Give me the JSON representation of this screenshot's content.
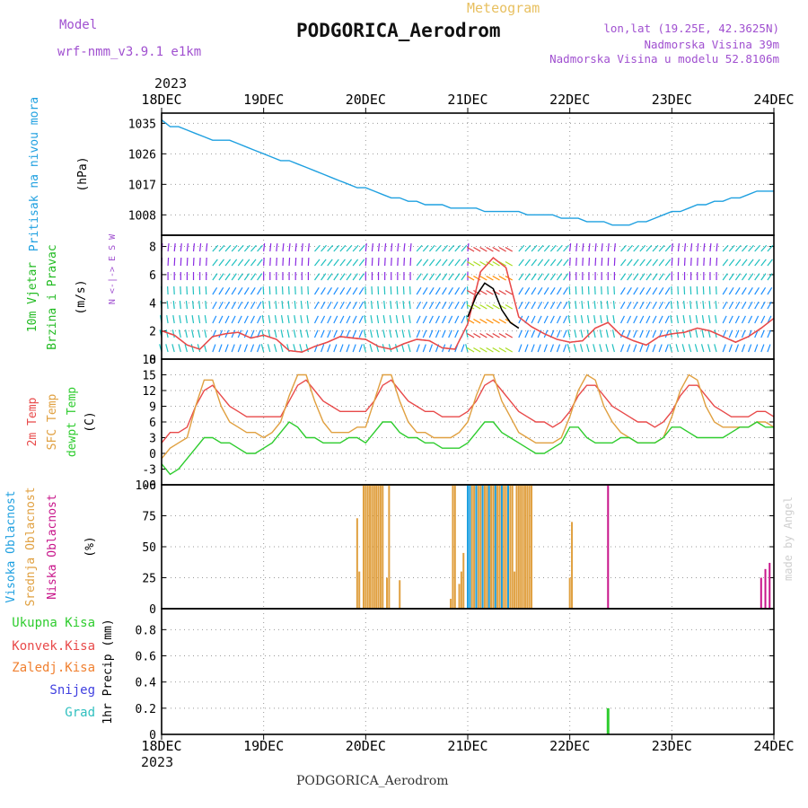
{
  "header": {
    "model_label": "Model",
    "model_name": "wrf-nmm_v3.9.1  e1km",
    "meteogram": "Meteogram",
    "station": "PODGORICA_Aerodrom",
    "lonlat": "lon,lat (19.25E, 42.3625N)",
    "elevation": "Nadmorska Visina 39m",
    "model_elevation": "Nadmorska Visina u modelu 52.8106m",
    "year": "2023",
    "footer_station": "PODGORICA_Aerodrom",
    "made_by": "made by Angel"
  },
  "colors": {
    "pressure": "#1fa0e0",
    "temp2m": "#e84a4a",
    "sfc": "#e0a040",
    "dewpt": "#2ecc2e",
    "high_cloud": "#1fa0e0",
    "mid_cloud": "#e0a040",
    "low_cloud": "#c8158a",
    "wind_label": "#22bb22",
    "purple": "#a050d0"
  },
  "x_ticks": [
    "18DEC",
    "19DEC",
    "20DEC",
    "21DEC",
    "22DEC",
    "23DEC",
    "24DEC"
  ],
  "x_bottom_year": "2023",
  "chart_data": [
    {
      "type": "line",
      "name": "pressure",
      "ylabel": [
        "Pritisak na nivou mora",
        "(hPa)"
      ],
      "yticks": [
        1008,
        1017,
        1026,
        1035
      ],
      "ylim": [
        1002,
        1038
      ],
      "grid": true,
      "series": [
        {
          "name": "",
          "color": "#1fa0e0",
          "x": [
            0,
            2,
            4,
            6,
            8,
            10,
            12,
            14,
            16,
            18,
            20,
            22,
            24,
            26,
            28,
            30,
            32,
            34,
            36,
            38,
            40,
            42,
            44,
            46,
            48,
            50,
            52,
            54,
            56,
            58,
            60,
            62,
            64,
            66,
            68,
            70,
            72,
            74,
            76,
            78,
            80,
            82,
            84,
            86,
            88,
            90,
            92,
            94,
            96,
            98,
            100,
            102,
            104,
            106,
            108,
            110,
            112,
            114,
            116,
            118,
            120,
            122,
            124,
            126,
            128,
            130,
            132,
            134,
            136,
            138,
            140,
            142,
            144
          ],
          "values": [
            1036,
            1034,
            1034,
            1033,
            1032,
            1031,
            1030,
            1030,
            1030,
            1029,
            1028,
            1027,
            1026,
            1025,
            1024,
            1024,
            1023,
            1022,
            1021,
            1020,
            1019,
            1018,
            1017,
            1016,
            1016,
            1015,
            1014,
            1013,
            1013,
            1012,
            1012,
            1011,
            1011,
            1011,
            1010,
            1010,
            1010,
            1010,
            1009,
            1009,
            1009,
            1009,
            1009,
            1008,
            1008,
            1008,
            1008,
            1007,
            1007,
            1007,
            1006,
            1006,
            1006,
            1005,
            1005,
            1005,
            1006,
            1006,
            1007,
            1008,
            1009,
            1009,
            1010,
            1011,
            1011,
            1012,
            1012,
            1013,
            1013,
            1014,
            1015,
            1015,
            1015
          ]
        }
      ]
    },
    {
      "type": "line",
      "name": "wind",
      "ylabel": [
        "10m Vjetar",
        "Brzina i Pravac",
        "(m/s)"
      ],
      "compass": "N  <-|->  E   S  W",
      "yticks": [
        0,
        2,
        4,
        6,
        8
      ],
      "ylim": [
        0,
        8.8
      ],
      "grid": true,
      "series": [
        {
          "name": "",
          "color": "#e84a4a",
          "x": [
            0,
            3,
            6,
            9,
            12,
            15,
            18,
            21,
            24,
            27,
            30,
            33,
            36,
            39,
            42,
            45,
            48,
            51,
            54,
            57,
            60,
            63,
            66,
            69,
            72,
            75,
            78,
            81,
            84,
            87,
            90,
            93,
            96,
            99,
            102,
            105,
            108,
            111,
            114,
            117,
            120,
            123,
            126,
            129,
            132,
            135,
            138,
            141,
            144
          ],
          "values": [
            2.0,
            1.7,
            1.0,
            0.7,
            1.6,
            1.8,
            1.9,
            1.5,
            1.7,
            1.4,
            0.6,
            0.5,
            0.9,
            1.2,
            1.6,
            1.5,
            1.4,
            0.9,
            0.7,
            1.1,
            1.4,
            1.3,
            0.8,
            0.7,
            2.5,
            6.2,
            7.2,
            6.5,
            3.0,
            2.3,
            1.8,
            1.4,
            1.2,
            1.3,
            2.2,
            2.6,
            1.7,
            1.3,
            1.0,
            1.6,
            1.8,
            1.9,
            2.2,
            2.0,
            1.6,
            1.2,
            1.6,
            2.2,
            2.9
          ]
        },
        {
          "name": "",
          "color": "#000000",
          "x": [
            72,
            74,
            76,
            78,
            80,
            82,
            84
          ],
          "values": [
            3.0,
            4.5,
            5.4,
            5.0,
            3.5,
            2.6,
            2.2
          ]
        }
      ],
      "barb_colors": [
        "#8a2be2",
        "#20c0c0",
        "#1e90ff",
        "#aadd22",
        "#e04040",
        "#ff8c00"
      ]
    },
    {
      "type": "line",
      "name": "temperature",
      "ylabel": [
        "2m Temp",
        "SFC Temp",
        "dewpt Temp",
        "(C)"
      ],
      "yticks": [
        -6,
        -3,
        0,
        3,
        6,
        9,
        12,
        15,
        18
      ],
      "ylim": [
        -6,
        18
      ],
      "grid": true,
      "series": [
        {
          "name": "2m Temp",
          "color": "#e84a4a",
          "x": [
            0,
            2,
            4,
            6,
            8,
            10,
            12,
            14,
            16,
            18,
            20,
            22,
            24,
            26,
            28,
            30,
            32,
            34,
            36,
            38,
            40,
            42,
            44,
            46,
            48,
            50,
            52,
            54,
            56,
            58,
            60,
            62,
            64,
            66,
            68,
            70,
            72,
            74,
            76,
            78,
            80,
            82,
            84,
            86,
            88,
            90,
            92,
            94,
            96,
            98,
            100,
            102,
            104,
            106,
            108,
            110,
            112,
            114,
            116,
            118,
            120,
            122,
            124,
            126,
            128,
            130,
            132,
            134,
            136,
            138,
            140,
            142,
            144
          ],
          "values": [
            2,
            4,
            4,
            5,
            9,
            12,
            13,
            11,
            9,
            8,
            7,
            7,
            7,
            7,
            7,
            10,
            13,
            14,
            12,
            10,
            9,
            8,
            8,
            8,
            8,
            10,
            13,
            14,
            12,
            10,
            9,
            8,
            8,
            7,
            7,
            7,
            8,
            10,
            13,
            14,
            12,
            10,
            8,
            7,
            6,
            6,
            5,
            6,
            8,
            11,
            13,
            13,
            11,
            9,
            8,
            7,
            6,
            6,
            5,
            6,
            8,
            11,
            13,
            13,
            11,
            9,
            8,
            7,
            7,
            7,
            8,
            8,
            7
          ]
        },
        {
          "name": "SFC Temp",
          "color": "#e0a040",
          "x": [
            0,
            2,
            4,
            6,
            8,
            10,
            12,
            14,
            16,
            18,
            20,
            22,
            24,
            26,
            28,
            30,
            32,
            34,
            36,
            38,
            40,
            42,
            44,
            46,
            48,
            50,
            52,
            54,
            56,
            58,
            60,
            62,
            64,
            66,
            68,
            70,
            72,
            74,
            76,
            78,
            80,
            82,
            84,
            86,
            88,
            90,
            92,
            94,
            96,
            98,
            100,
            102,
            104,
            106,
            108,
            110,
            112,
            114,
            116,
            118,
            120,
            122,
            124,
            126,
            128,
            130,
            132,
            134,
            136,
            138,
            140,
            142,
            144
          ],
          "values": [
            -1,
            1,
            2,
            3,
            9,
            14,
            14,
            9,
            6,
            5,
            4,
            4,
            3,
            4,
            6,
            11,
            15,
            15,
            10,
            6,
            4,
            4,
            4,
            5,
            5,
            10,
            15,
            15,
            10,
            6,
            4,
            4,
            3,
            3,
            3,
            4,
            6,
            11,
            15,
            15,
            10,
            7,
            4,
            3,
            2,
            2,
            2,
            3,
            7,
            12,
            15,
            14,
            9,
            6,
            4,
            3,
            2,
            2,
            2,
            3,
            7,
            12,
            15,
            14,
            9,
            6,
            5,
            5,
            5,
            5,
            6,
            6,
            5
          ]
        },
        {
          "name": "dewpt Temp",
          "color": "#2ecc2e",
          "x": [
            0,
            2,
            4,
            6,
            8,
            10,
            12,
            14,
            16,
            18,
            20,
            22,
            24,
            26,
            28,
            30,
            32,
            34,
            36,
            38,
            40,
            42,
            44,
            46,
            48,
            50,
            52,
            54,
            56,
            58,
            60,
            62,
            64,
            66,
            68,
            70,
            72,
            74,
            76,
            78,
            80,
            82,
            84,
            86,
            88,
            90,
            92,
            94,
            96,
            98,
            100,
            102,
            104,
            106,
            108,
            110,
            112,
            114,
            116,
            118,
            120,
            122,
            124,
            126,
            128,
            130,
            132,
            134,
            136,
            138,
            140,
            142,
            144
          ],
          "values": [
            -2,
            -4,
            -3,
            -1,
            1,
            3,
            3,
            2,
            2,
            1,
            0,
            0,
            1,
            2,
            4,
            6,
            5,
            3,
            3,
            2,
            2,
            2,
            3,
            3,
            2,
            4,
            6,
            6,
            4,
            3,
            3,
            2,
            2,
            1,
            1,
            1,
            2,
            4,
            6,
            6,
            4,
            3,
            2,
            1,
            0,
            0,
            1,
            2,
            5,
            5,
            3,
            2,
            2,
            2,
            3,
            3,
            2,
            2,
            2,
            3,
            5,
            5,
            4,
            3,
            3,
            3,
            3,
            4,
            5,
            5,
            6,
            5,
            5
          ]
        }
      ]
    },
    {
      "type": "bar",
      "name": "clouds",
      "ylabel": [
        "Visoka Oblacnost",
        "Srednja Oblacnost",
        "Niska Oblacnost",
        "(%)"
      ],
      "yticks": [
        0,
        25,
        50,
        75,
        100
      ],
      "ylim": [
        0,
        100
      ],
      "grid": true,
      "series": [
        {
          "name": "Srednja Oblacnost",
          "color": "#e0a040",
          "x": [
            46.0,
            46.5,
            47.5,
            48.0,
            48.5,
            49.0,
            49.5,
            50.0,
            50.5,
            51.0,
            51.5,
            52.0,
            53.0,
            53.5,
            56.0,
            68.0,
            68.5,
            69.0,
            70.0,
            70.5,
            71.0,
            72.0,
            73.0,
            73.5,
            74.0,
            74.5,
            75.0,
            75.5,
            76.0,
            76.5,
            77.0,
            77.5,
            78.0,
            78.5,
            79.0,
            79.5,
            80.0,
            80.5,
            81.0,
            81.5,
            82.0,
            82.5,
            83.0,
            83.5,
            84.0,
            84.5,
            85.0,
            85.5,
            86.0,
            86.5,
            87.0,
            96.0,
            96.5
          ],
          "values": [
            73,
            30,
            100,
            100,
            100,
            100,
            100,
            100,
            100,
            100,
            100,
            100,
            25,
            100,
            23,
            8,
            100,
            100,
            20,
            30,
            45,
            100,
            100,
            100,
            100,
            100,
            100,
            100,
            100,
            100,
            100,
            100,
            100,
            100,
            100,
            100,
            100,
            100,
            100,
            100,
            100,
            100,
            30,
            100,
            100,
            100,
            100,
            100,
            100,
            100,
            100,
            25,
            70
          ]
        },
        {
          "name": "Visoka Oblacnost",
          "color": "#1fa0e0",
          "x": [
            72.0,
            72.5,
            74.0,
            75.5,
            77.0,
            78.5,
            80.0,
            81.5
          ],
          "values": [
            100,
            100,
            100,
            100,
            100,
            100,
            100,
            100
          ]
        },
        {
          "name": "Niska Oblacnost",
          "color": "#c8158a",
          "x": [
            105.0,
            143.0,
            141.0,
            142.0
          ],
          "values": [
            100,
            37,
            25,
            32
          ]
        }
      ]
    },
    {
      "type": "bar",
      "name": "precip",
      "ylabel": [
        "1hr Precip (mm)"
      ],
      "legend": [
        "Ukupna Kisa",
        "Konvek.Kisa",
        "Zaledj.Kisa",
        "Snijeg",
        "Grad"
      ],
      "legend_colors": [
        "#2ecc2e",
        "#e84a4a",
        "#f08030",
        "#4040e0",
        "#30c0c0"
      ],
      "yticks": [
        0,
        0.2,
        0.4,
        0.6,
        0.8
      ],
      "ylim": [
        0,
        0.96
      ],
      "grid": true,
      "series": [
        {
          "name": "Ukupna Kisa",
          "color": "#2ecc2e",
          "x": [
            105.0
          ],
          "values": [
            0.2
          ]
        }
      ]
    }
  ]
}
